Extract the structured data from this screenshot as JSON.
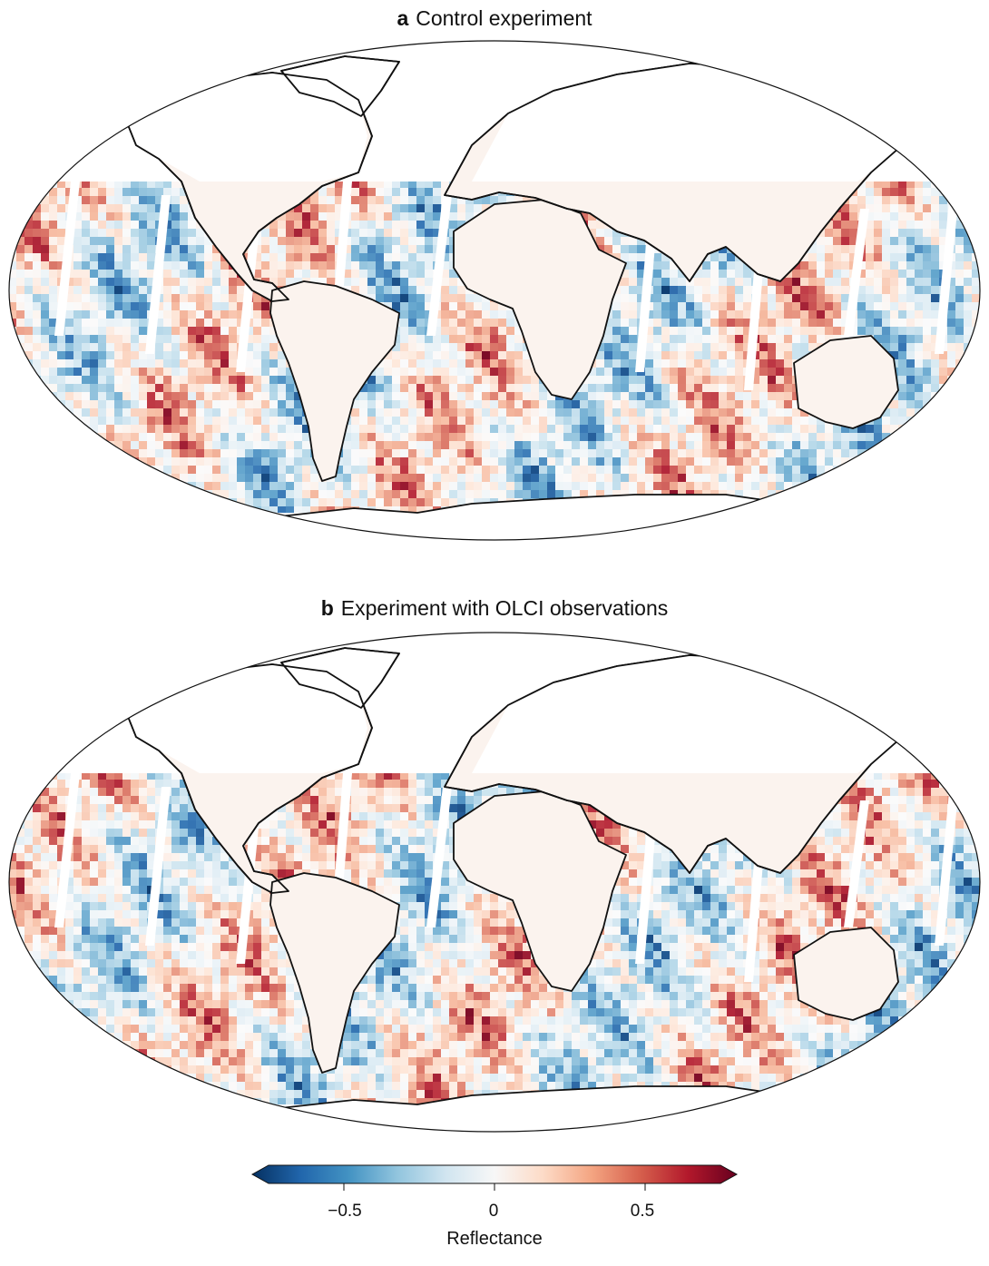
{
  "panels": [
    {
      "letter": "a",
      "title": "Control experiment",
      "seed": 11
    },
    {
      "letter": "b",
      "title": "Experiment with OLCI observations",
      "seed": 29
    }
  ],
  "colorbar": {
    "label": "Reflectance",
    "range": [
      -0.75,
      0.75
    ],
    "ticks": [
      {
        "value": -0.5,
        "label": "−0.5"
      },
      {
        "value": 0,
        "label": "0"
      },
      {
        "value": 0.5,
        "label": "0.5"
      }
    ],
    "colors": [
      "#053061",
      "#2166ac",
      "#4393c3",
      "#92c5de",
      "#d1e5f0",
      "#f7f7f7",
      "#fddbc7",
      "#f4a582",
      "#d6604d",
      "#b2182b",
      "#67001f"
    ]
  }
}
